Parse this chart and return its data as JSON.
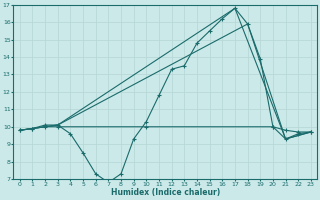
{
  "xlabel": "Humidex (Indice chaleur)",
  "background_color": "#cce9e9",
  "grid_color": "#b8d8d8",
  "line_color": "#1a6b6b",
  "xlim": [
    -0.5,
    23.5
  ],
  "ylim": [
    7,
    17
  ],
  "xticks": [
    0,
    1,
    2,
    3,
    4,
    5,
    6,
    7,
    8,
    9,
    10,
    11,
    12,
    13,
    14,
    15,
    16,
    17,
    18,
    19,
    20,
    21,
    22,
    23
  ],
  "yticks": [
    7,
    8,
    9,
    10,
    11,
    12,
    13,
    14,
    15,
    16,
    17
  ],
  "line_jagged_x": [
    0,
    1,
    2,
    3,
    4,
    5,
    6,
    7,
    8,
    9,
    10,
    11,
    12,
    13,
    14,
    15,
    16,
    17,
    18,
    19,
    20,
    21,
    22,
    23
  ],
  "line_jagged_y": [
    9.8,
    9.9,
    10.1,
    10.1,
    9.6,
    8.5,
    7.3,
    6.8,
    7.3,
    9.3,
    10.3,
    11.8,
    13.3,
    13.5,
    14.8,
    15.5,
    16.2,
    16.8,
    15.9,
    13.9,
    10.0,
    9.3,
    9.6,
    9.7
  ],
  "line_flat_x": [
    0,
    1,
    2,
    3,
    10,
    20,
    21,
    22,
    23
  ],
  "line_flat_y": [
    9.8,
    9.9,
    10.0,
    10.0,
    10.0,
    10.0,
    9.8,
    9.7,
    9.7
  ],
  "line_diag1_x": [
    0,
    3,
    17,
    21,
    23
  ],
  "line_diag1_y": [
    9.8,
    10.1,
    16.8,
    9.3,
    9.7
  ],
  "line_diag2_x": [
    0,
    3,
    18,
    21,
    23
  ],
  "line_diag2_y": [
    9.8,
    10.1,
    15.9,
    9.3,
    9.7
  ]
}
